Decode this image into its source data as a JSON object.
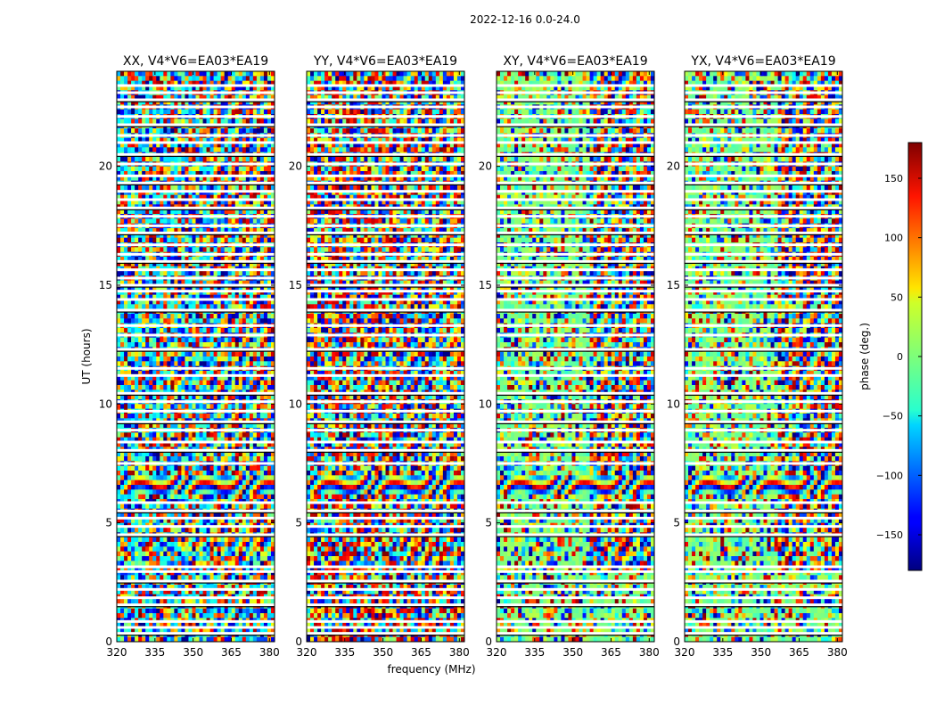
{
  "figure": {
    "suptitle": "2022-12-16 0.0-24.0",
    "xlabel": "frequency (MHz)",
    "ylabel": "UT (hours)"
  },
  "chart_data": {
    "type": "heatmap",
    "description_colormap": "jet",
    "panels": [
      {
        "title": "XX, V4*V6=EA03*EA19",
        "pol": "XX"
      },
      {
        "title": "YY, V4*V6=EA03*EA19",
        "pol": "YY"
      },
      {
        "title": "XY, V4*V6=EA03*EA19",
        "pol": "XY"
      },
      {
        "title": "YX, V4*V6=EA03*EA19",
        "pol": "YX"
      }
    ],
    "x": {
      "label": "frequency (MHz)",
      "range": [
        320,
        382
      ],
      "ticks": [
        320,
        335,
        350,
        365,
        380
      ]
    },
    "y": {
      "label": "UT (hours)",
      "range": [
        0,
        24
      ],
      "ticks": [
        0,
        5,
        10,
        15,
        20
      ]
    },
    "colorbar": {
      "label": "phase (deg.)",
      "range": [
        -180,
        180
      ],
      "ticks": [
        -150,
        -100,
        -50,
        0,
        50,
        100,
        150
      ],
      "tick_labels": [
        "−150",
        "−100",
        "−50",
        "0",
        "50",
        "100",
        "150"
      ]
    },
    "flagged_rows_ut_hours": [
      0.35,
      0.6,
      0.85,
      1.55,
      1.85,
      2.2,
      2.55,
      2.95,
      3.15,
      4.5,
      4.85,
      5.2,
      5.5,
      5.85,
      7.5,
      8.05,
      8.4,
      8.9,
      9.25,
      9.7,
      10.1,
      10.45,
      11.2,
      11.5,
      12.3,
      12.9,
      13.3,
      13.95,
      14.4,
      14.75,
      15.0,
      15.3,
      15.65,
      16.0,
      16.3,
      16.7,
      17.2,
      17.5,
      17.9,
      18.25,
      18.6,
      18.95,
      19.3,
      19.6,
      20.1,
      20.5,
      21.0,
      21.3,
      21.75,
      22.1,
      22.5,
      22.8,
      23.1,
      23.4
    ],
    "fringe_band_ut_hours": [
      6.2,
      6.9
    ],
    "grid": false
  }
}
